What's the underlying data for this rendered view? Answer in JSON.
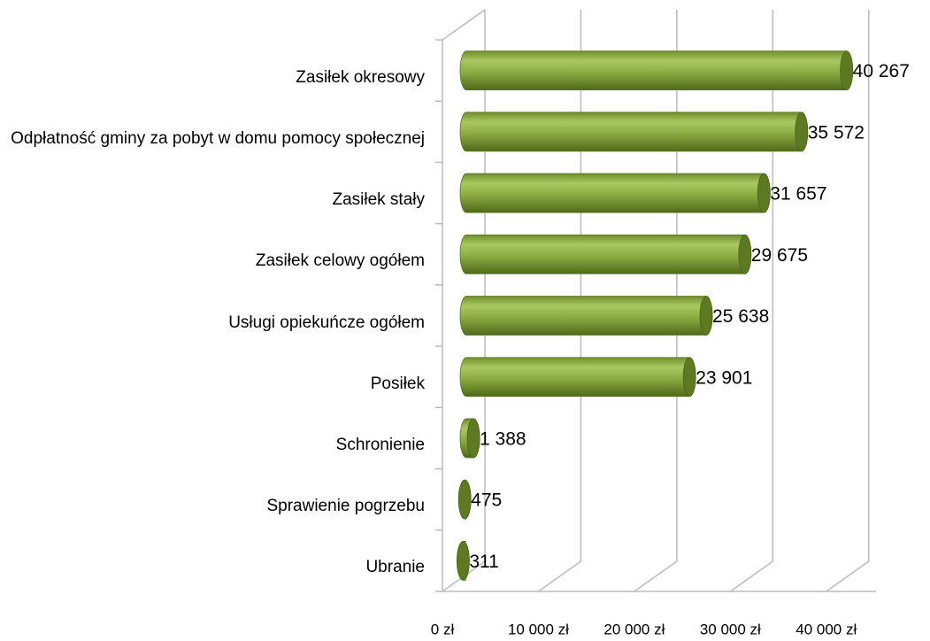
{
  "chart_data": {
    "type": "bar",
    "orientation": "horizontal",
    "categories": [
      "Zasiłek okresowy",
      "Odpłatność gminy za pobyt w domu pomocy społecznej",
      "Zasiłek stały",
      "Zasiłek celowy ogółem",
      "Usługi opiekuńcze ogółem",
      "Posiłek",
      "Schronienie",
      "Sprawienie pogrzebu",
      "Ubranie"
    ],
    "values": [
      40267,
      35572,
      31657,
      29675,
      25638,
      23901,
      1388,
      475,
      311
    ],
    "value_labels": [
      "40 267",
      "35 572",
      "31 657",
      "29 675",
      "25 638",
      "23 901",
      "1 388",
      "475",
      "311"
    ],
    "color": "#8bab42",
    "xlim": [
      0,
      45000
    ],
    "xticks": [
      {
        "value": 0,
        "label": "0 zł"
      },
      {
        "value": 10000,
        "label": "10 000 zł"
      },
      {
        "value": 20000,
        "label": "20 000 zł"
      },
      {
        "value": 30000,
        "label": "30 000 zł"
      },
      {
        "value": 40000,
        "label": "40 000 zł"
      }
    ],
    "grid": true
  }
}
